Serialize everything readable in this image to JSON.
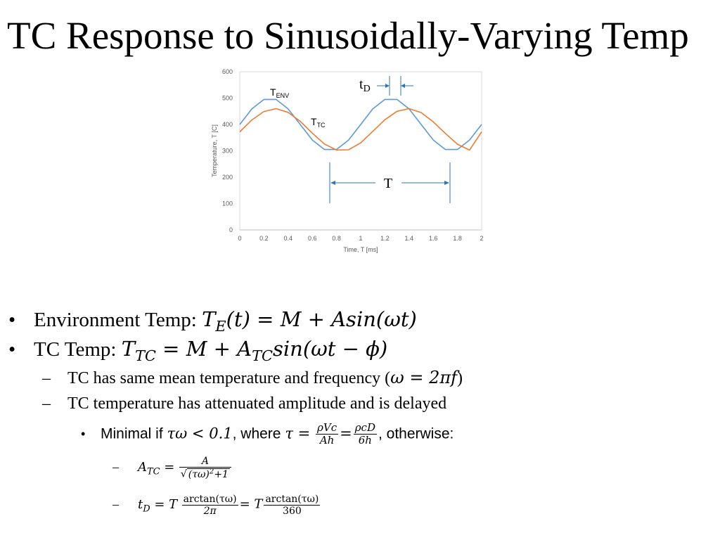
{
  "slide": {
    "title": "TC Response to Sinusoidally-Varying Temp"
  },
  "chart_data": {
    "type": "line",
    "xlabel": "Time, T [ms]",
    "ylabel": "Temperature, T [C]",
    "xlim": [
      0,
      2
    ],
    "ylim": [
      0,
      600
    ],
    "x_ticks": [
      "0",
      "0.2",
      "0.4",
      "0.6",
      "0.8",
      "1",
      "1.2",
      "1.4",
      "1.6",
      "1.8",
      "2"
    ],
    "y_ticks": [
      "0",
      "100",
      "200",
      "300",
      "400",
      "500",
      "600"
    ],
    "grid": false,
    "x": [
      0,
      0.1,
      0.2,
      0.3,
      0.4,
      0.5,
      0.6,
      0.7,
      0.8,
      0.9,
      1.0,
      1.1,
      1.2,
      1.3,
      1.4,
      1.5,
      1.6,
      1.7,
      1.8,
      1.9,
      2.0
    ],
    "series": [
      {
        "label_main": "T",
        "label_sub": "ENV",
        "color": "#5b9bd5",
        "values": [
          400,
          459,
          495,
          495,
          459,
          400,
          341,
          305,
          305,
          341,
          400,
          459,
          495,
          495,
          459,
          400,
          341,
          305,
          305,
          341,
          400
        ]
      },
      {
        "label_main": "T",
        "label_sub": "TC",
        "color": "#ed7d31",
        "values": [
          372,
          417,
          449,
          460,
          446,
          412,
          367,
          326,
          303,
          304,
          330,
          374,
          418,
          450,
          460,
          445,
          410,
          366,
          325,
          303,
          372
        ]
      }
    ],
    "annotations": {
      "delay_main": "t",
      "delay_sub": "D",
      "period": "T"
    }
  },
  "bullets": {
    "b1": {
      "marker": "•",
      "text": "Environment Temp: ",
      "formula": {
        "lhs": "T",
        "lhs_sub": "E",
        "rhs": "(t) = M + Asin(ωt)"
      }
    },
    "b2": {
      "marker": "•",
      "text": "TC Temp: ",
      "formula": {
        "lhs": "T",
        "lhs_sub": "TC",
        "mid": " = M + A",
        "mid_sub": "TC",
        "rhs": "sin(ωt − ϕ)"
      }
    },
    "b3": {
      "marker": "–",
      "text": "TC has same mean temperature and frequency (",
      "formula": "ω = 2πf",
      "close": ")"
    },
    "b4": {
      "marker": "–",
      "text": "TC temperature has attenuated amplitude and is delayed"
    },
    "b5": {
      "marker": "•",
      "text": "Minimal if ",
      "cond": "τω < 0.1",
      "where": ", where ",
      "tau_eq": "τ =",
      "frac1_num": "ρVc",
      "frac1_den": "Ah",
      "eq": "=",
      "frac2_num": "ρcD",
      "frac2_den": "6h",
      "otherwise": ", otherwise:"
    },
    "b6": {
      "marker": "–",
      "lhs": "A",
      "lhs_sub": "TC",
      "eq": " =",
      "num": "A",
      "den_sqrt": "(τω)",
      "den_pow": "2",
      "den_plus": "+1"
    },
    "b7": {
      "marker": "–",
      "lhs": "t",
      "lhs_sub": "D",
      "eq1": " = T",
      "num1": "arctan(τω)",
      "den1": "2π",
      "eq2": "= T",
      "num2": "arctan(τω)",
      "den2": "360"
    }
  }
}
